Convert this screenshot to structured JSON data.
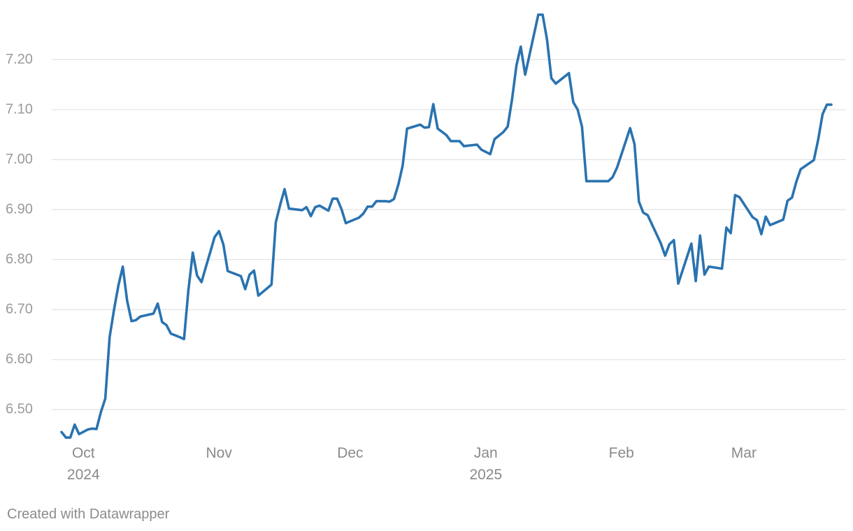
{
  "chart_data": {
    "type": "line",
    "title": "",
    "xlabel": "",
    "ylabel": "",
    "ylim": [
      6.45,
      7.29
    ],
    "yticks": [
      6.5,
      6.6,
      6.7,
      6.8,
      6.9,
      7.0,
      7.1,
      7.2
    ],
    "ytick_labels": [
      "6.50",
      "6.60",
      "6.70",
      "6.80",
      "6.90",
      "7.00",
      "7.10",
      "7.20"
    ],
    "xlim": [
      "2024-09-26",
      "2025-03-21"
    ],
    "xticks": [
      {
        "date": "2024-10-01",
        "label": "Oct",
        "sublabel": "2024"
      },
      {
        "date": "2024-11-01",
        "label": "Nov",
        "sublabel": ""
      },
      {
        "date": "2024-12-01",
        "label": "Dec",
        "sublabel": ""
      },
      {
        "date": "2025-01-01",
        "label": "Jan",
        "sublabel": "2025"
      },
      {
        "date": "2025-02-01",
        "label": "Feb",
        "sublabel": ""
      },
      {
        "date": "2025-03-01",
        "label": "Mar",
        "sublabel": ""
      }
    ],
    "grid": true,
    "legend": "none",
    "series": [
      {
        "color": "#2a73b0",
        "points": [
          [
            "2024-09-26",
            6.455
          ],
          [
            "2024-09-27",
            6.444
          ],
          [
            "2024-09-28",
            6.444
          ],
          [
            "2024-09-29",
            6.47
          ],
          [
            "2024-09-30",
            6.451
          ],
          [
            "2024-10-02",
            6.46
          ],
          [
            "2024-10-03",
            6.462
          ],
          [
            "2024-10-04",
            6.461
          ],
          [
            "2024-10-05",
            6.495
          ],
          [
            "2024-10-06",
            6.522
          ],
          [
            "2024-10-07",
            6.645
          ],
          [
            "2024-10-08",
            6.7
          ],
          [
            "2024-10-09",
            6.748
          ],
          [
            "2024-10-10",
            6.786
          ],
          [
            "2024-10-11",
            6.718
          ],
          [
            "2024-10-12",
            6.677
          ],
          [
            "2024-10-13",
            6.679
          ],
          [
            "2024-10-14",
            6.686
          ],
          [
            "2024-10-16",
            6.69
          ],
          [
            "2024-10-17",
            6.692
          ],
          [
            "2024-10-18",
            6.712
          ],
          [
            "2024-10-19",
            6.675
          ],
          [
            "2024-10-20",
            6.669
          ],
          [
            "2024-10-21",
            6.652
          ],
          [
            "2024-10-23",
            6.645
          ],
          [
            "2024-10-24",
            6.641
          ],
          [
            "2024-10-25",
            6.738
          ],
          [
            "2024-10-26",
            6.814
          ],
          [
            "2024-10-27",
            6.768
          ],
          [
            "2024-10-28",
            6.755
          ],
          [
            "2024-10-29",
            6.785
          ],
          [
            "2024-10-30",
            6.815
          ],
          [
            "2024-10-31",
            6.845
          ],
          [
            "2024-11-01",
            6.857
          ],
          [
            "2024-11-02",
            6.83
          ],
          [
            "2024-11-03",
            6.777
          ],
          [
            "2024-11-06",
            6.767
          ],
          [
            "2024-11-07",
            6.741
          ],
          [
            "2024-11-08",
            6.77
          ],
          [
            "2024-11-09",
            6.778
          ],
          [
            "2024-11-10",
            6.728
          ],
          [
            "2024-11-13",
            6.75
          ],
          [
            "2024-11-14",
            6.875
          ],
          [
            "2024-11-15",
            6.91
          ],
          [
            "2024-11-16",
            6.941
          ],
          [
            "2024-11-17",
            6.902
          ],
          [
            "2024-11-20",
            6.899
          ],
          [
            "2024-11-21",
            6.905
          ],
          [
            "2024-11-22",
            6.887
          ],
          [
            "2024-11-23",
            6.905
          ],
          [
            "2024-11-24",
            6.908
          ],
          [
            "2024-11-26",
            6.898
          ],
          [
            "2024-11-27",
            6.922
          ],
          [
            "2024-11-28",
            6.922
          ],
          [
            "2024-11-29",
            6.901
          ],
          [
            "2024-11-30",
            6.873
          ],
          [
            "2024-12-03",
            6.884
          ],
          [
            "2024-12-04",
            6.892
          ],
          [
            "2024-12-05",
            6.906
          ],
          [
            "2024-12-06",
            6.906
          ],
          [
            "2024-12-07",
            6.917
          ],
          [
            "2024-12-09",
            6.917
          ],
          [
            "2024-12-10",
            6.916
          ],
          [
            "2024-12-11",
            6.921
          ],
          [
            "2024-12-12",
            6.95
          ],
          [
            "2024-12-13",
            6.988
          ],
          [
            "2024-12-14",
            7.062
          ],
          [
            "2024-12-17",
            7.07
          ],
          [
            "2024-12-18",
            7.064
          ],
          [
            "2024-12-19",
            7.065
          ],
          [
            "2024-12-20",
            7.111
          ],
          [
            "2024-12-21",
            7.062
          ],
          [
            "2024-12-23",
            7.049
          ],
          [
            "2024-12-24",
            7.037
          ],
          [
            "2024-12-26",
            7.037
          ],
          [
            "2024-12-27",
            7.027
          ],
          [
            "2024-12-30",
            7.03
          ],
          [
            "2024-12-31",
            7.02
          ],
          [
            "2025-01-02",
            7.011
          ],
          [
            "2025-01-03",
            7.041
          ],
          [
            "2025-01-05",
            7.055
          ],
          [
            "2025-01-06",
            7.066
          ],
          [
            "2025-01-07",
            7.12
          ],
          [
            "2025-01-08",
            7.188
          ],
          [
            "2025-01-09",
            7.226
          ],
          [
            "2025-01-10",
            7.17
          ],
          [
            "2025-01-11",
            7.21
          ],
          [
            "2025-01-13",
            7.29
          ],
          [
            "2025-01-14",
            7.29
          ],
          [
            "2025-01-15",
            7.24
          ],
          [
            "2025-01-16",
            7.163
          ],
          [
            "2025-01-17",
            7.152
          ],
          [
            "2025-01-20",
            7.173
          ],
          [
            "2025-01-21",
            7.115
          ],
          [
            "2025-01-22",
            7.1
          ],
          [
            "2025-01-23",
            7.066
          ],
          [
            "2025-01-24",
            6.957
          ],
          [
            "2025-01-29",
            6.957
          ],
          [
            "2025-01-30",
            6.965
          ],
          [
            "2025-01-31",
            6.984
          ],
          [
            "2025-02-01",
            7.01
          ],
          [
            "2025-02-03",
            7.063
          ],
          [
            "2025-02-04",
            7.031
          ],
          [
            "2025-02-05",
            6.916
          ],
          [
            "2025-02-06",
            6.894
          ],
          [
            "2025-02-07",
            6.889
          ],
          [
            "2025-02-10",
            6.833
          ],
          [
            "2025-02-11",
            6.808
          ],
          [
            "2025-02-12",
            6.831
          ],
          [
            "2025-02-13",
            6.839
          ],
          [
            "2025-02-14",
            6.752
          ],
          [
            "2025-02-17",
            6.832
          ],
          [
            "2025-02-18",
            6.757
          ],
          [
            "2025-02-19",
            6.848
          ],
          [
            "2025-02-20",
            6.77
          ],
          [
            "2025-02-21",
            6.786
          ],
          [
            "2025-02-24",
            6.782
          ],
          [
            "2025-02-25",
            6.864
          ],
          [
            "2025-02-26",
            6.853
          ],
          [
            "2025-02-27",
            6.929
          ],
          [
            "2025-02-28",
            6.925
          ],
          [
            "2025-03-03",
            6.885
          ],
          [
            "2025-03-04",
            6.879
          ],
          [
            "2025-03-05",
            6.851
          ],
          [
            "2025-03-06",
            6.886
          ],
          [
            "2025-03-07",
            6.869
          ],
          [
            "2025-03-10",
            6.88
          ],
          [
            "2025-03-11",
            6.918
          ],
          [
            "2025-03-12",
            6.924
          ],
          [
            "2025-03-13",
            6.956
          ],
          [
            "2025-03-14",
            6.981
          ],
          [
            "2025-03-17",
            6.999
          ],
          [
            "2025-03-18",
            7.04
          ],
          [
            "2025-03-19",
            7.091
          ],
          [
            "2025-03-20",
            7.11
          ],
          [
            "2025-03-21",
            7.11
          ]
        ]
      }
    ]
  },
  "footer": {
    "credit": "Created with Datawrapper"
  }
}
